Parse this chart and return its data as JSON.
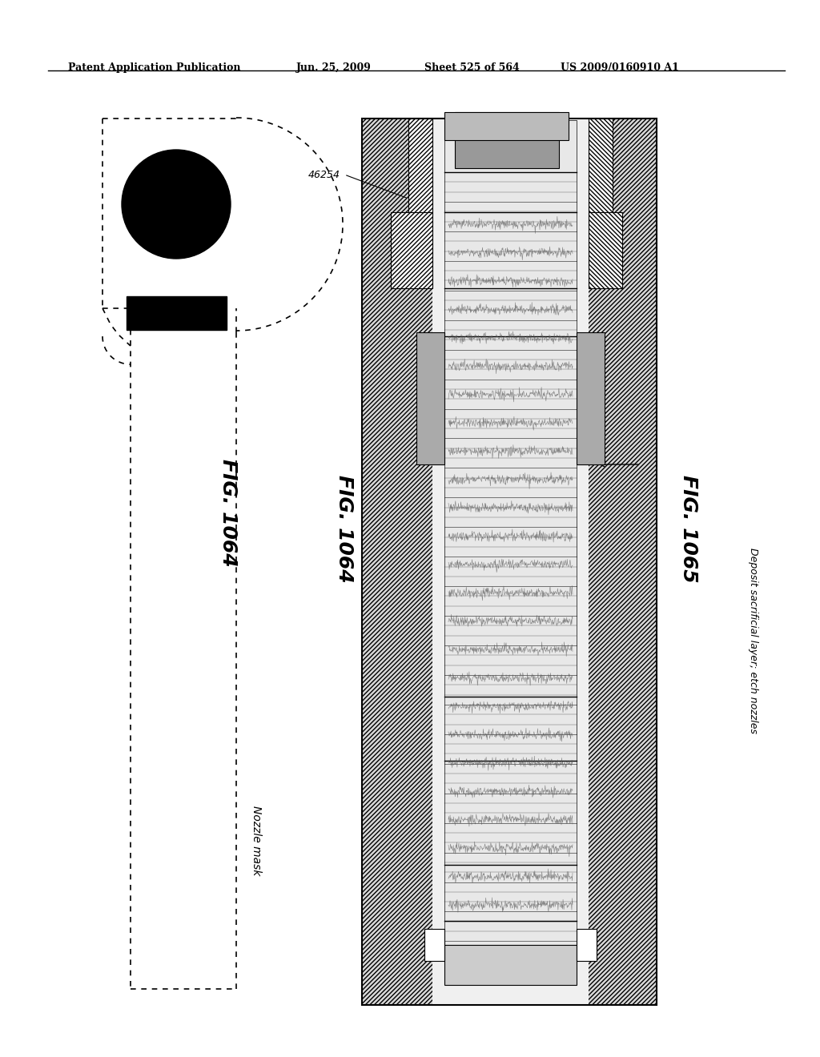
{
  "bg_color": "#ffffff",
  "header_text": "Patent Application Publication",
  "header_date": "Jun. 25, 2009",
  "header_sheet": "Sheet 525 of 564",
  "header_patent": "US 2009/0160910 A1",
  "fig1064_label": "FIG. 1064",
  "fig1065_label": "FIG. 1065",
  "nozzle_mask_label": "Nozzle mask",
  "deposit_label": "Deposit sacrificial layer; etch nozzles",
  "label_46254": "46254"
}
